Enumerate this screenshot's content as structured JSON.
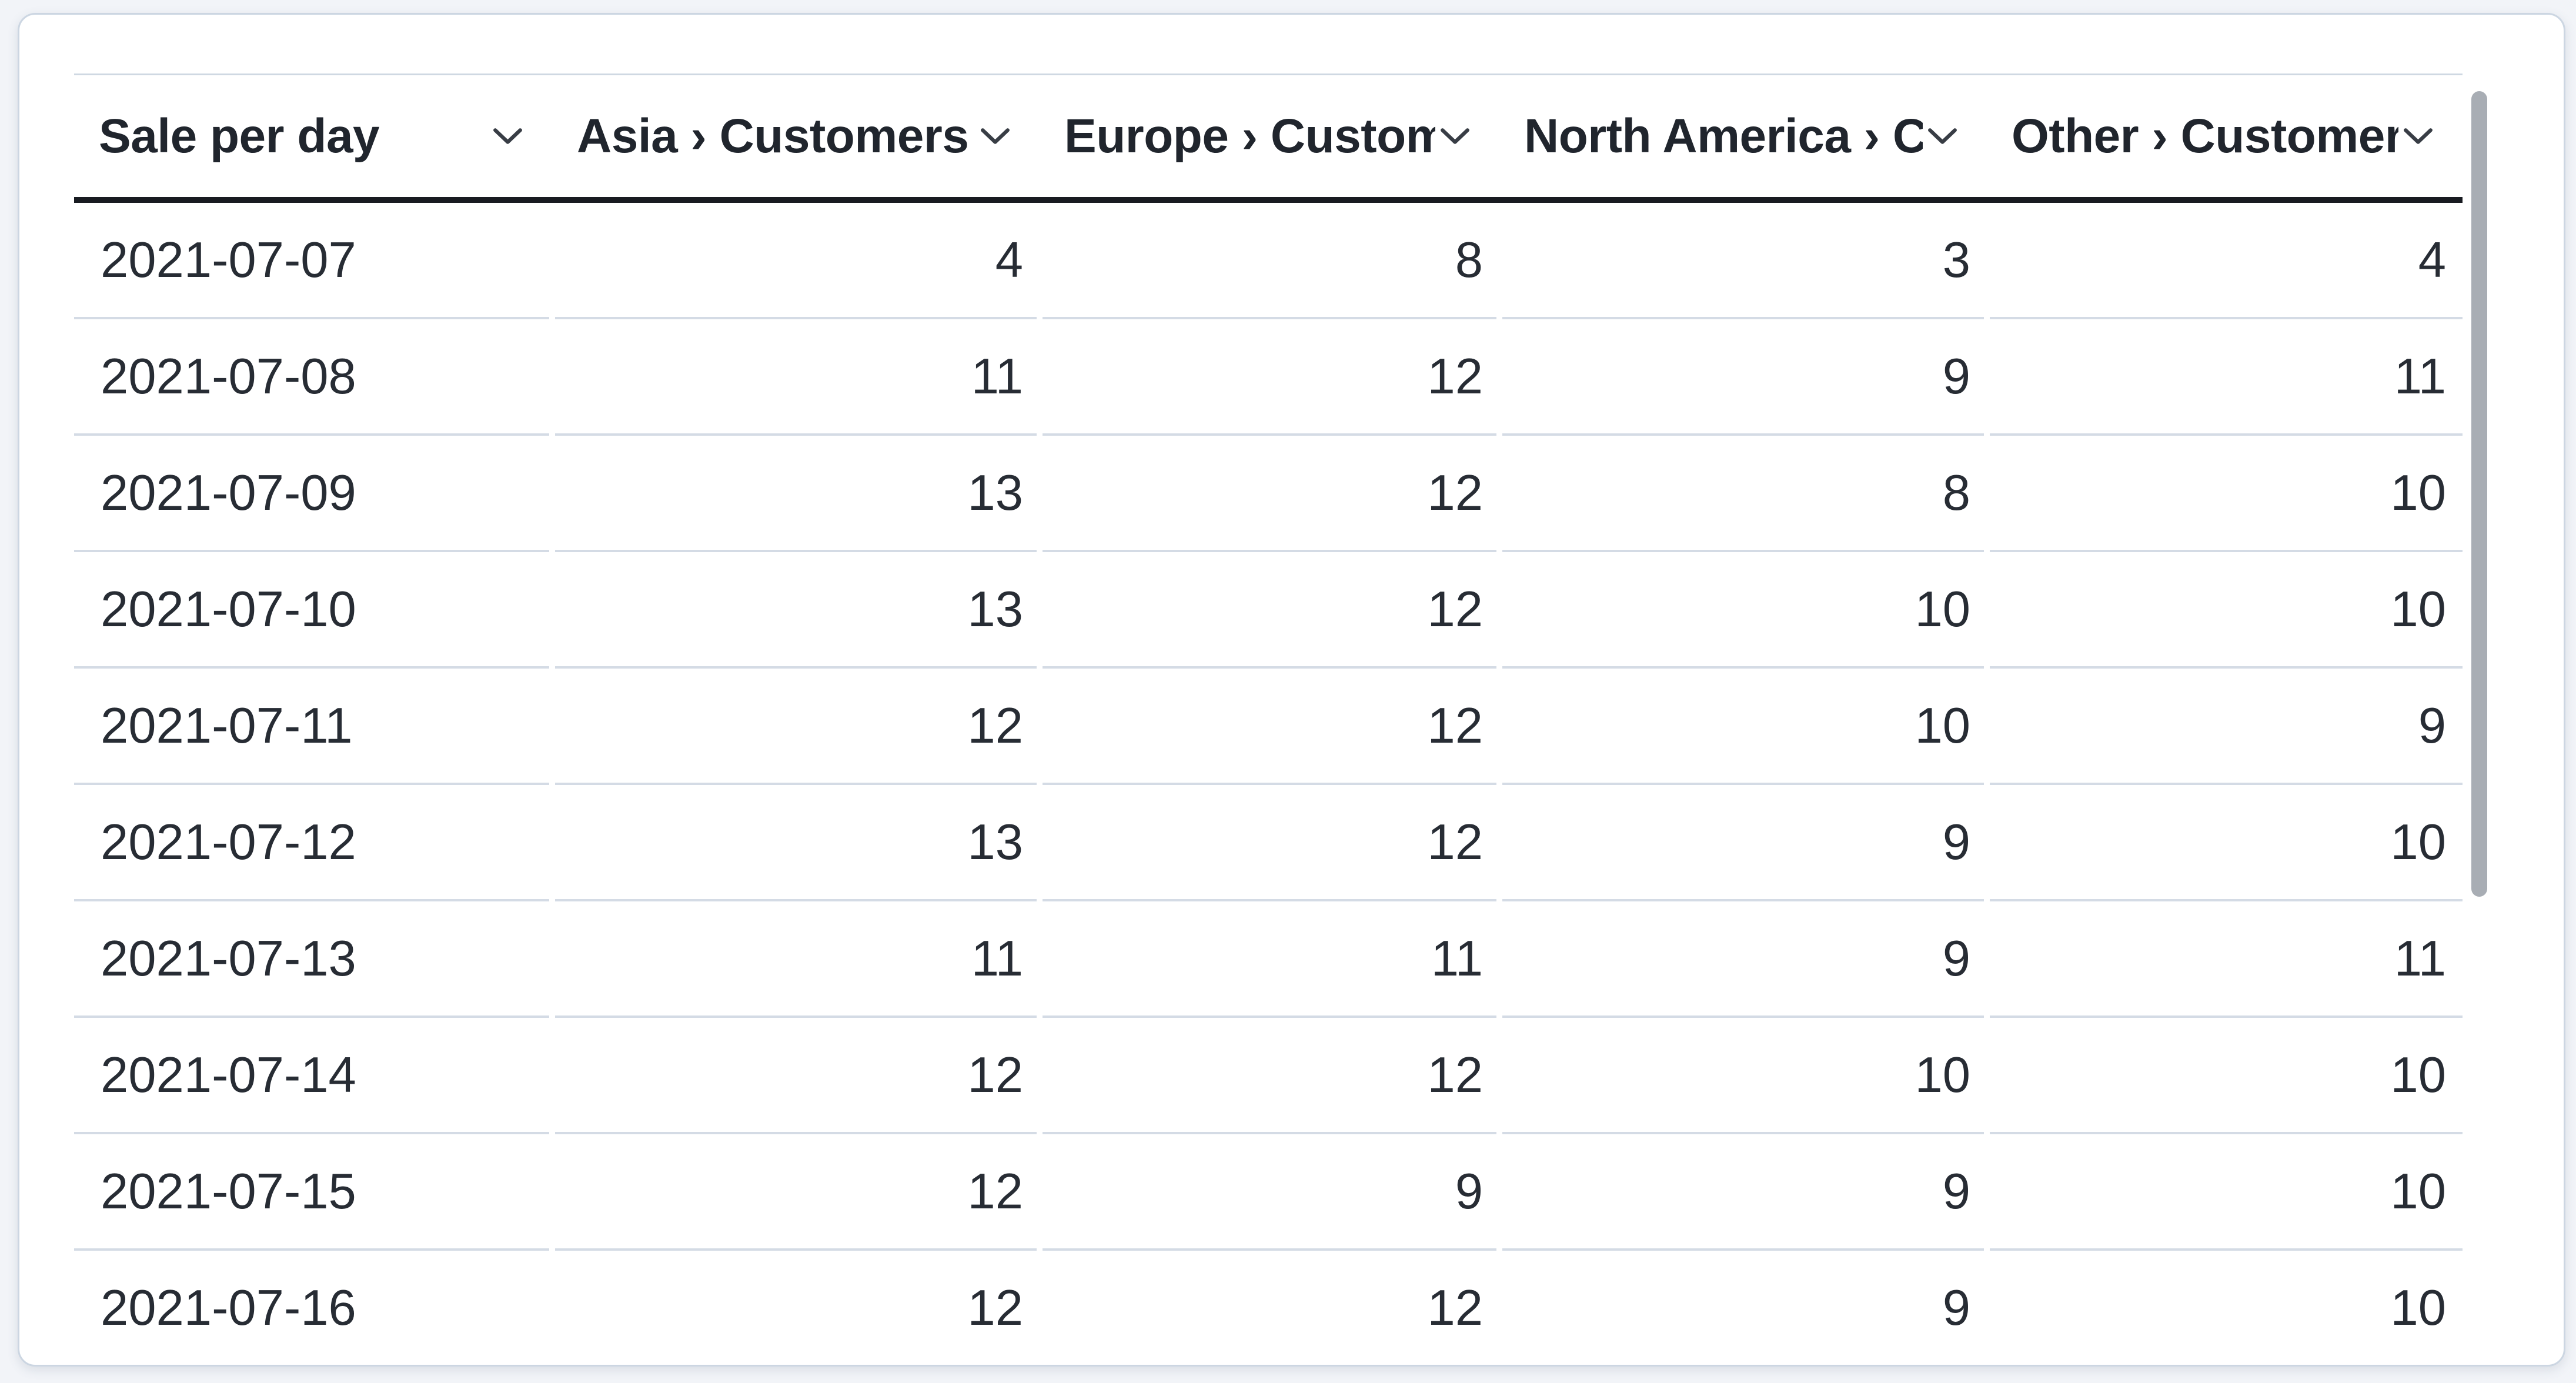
{
  "page": {
    "background": "#f2f4f8"
  },
  "card": {
    "background": "#ffffff",
    "border_color": "#ccd6e2"
  },
  "table": {
    "header": {
      "columns": [
        {
          "label": "Sale per day",
          "align": "left"
        },
        {
          "label": "Asia › Customers",
          "align": "right"
        },
        {
          "label": "Europe › Customers",
          "align": "right"
        },
        {
          "label": "North America › Customers",
          "align": "right"
        },
        {
          "label": "Other › Customers",
          "align": "right"
        }
      ],
      "sort_icon": "chevron-down"
    },
    "rows": [
      [
        "2021-07-07",
        "4",
        "8",
        "3",
        "4"
      ],
      [
        "2021-07-08",
        "11",
        "12",
        "9",
        "11"
      ],
      [
        "2021-07-09",
        "13",
        "12",
        "8",
        "10"
      ],
      [
        "2021-07-10",
        "13",
        "12",
        "10",
        "10"
      ],
      [
        "2021-07-11",
        "12",
        "12",
        "10",
        "9"
      ],
      [
        "2021-07-12",
        "13",
        "12",
        "9",
        "10"
      ],
      [
        "2021-07-13",
        "11",
        "11",
        "9",
        "11"
      ],
      [
        "2021-07-14",
        "12",
        "12",
        "10",
        "10"
      ],
      [
        "2021-07-15",
        "12",
        "9",
        "9",
        "10"
      ],
      [
        "2021-07-16",
        "12",
        "12",
        "9",
        "10"
      ]
    ]
  },
  "colors": {
    "header_text": "#20252d",
    "body_text": "#272c34",
    "header_rule": "#181b21",
    "row_rule": "#d4dbe5",
    "top_rule": "#cfd8e2",
    "scrollbar_thumb": "#a8adb4"
  }
}
